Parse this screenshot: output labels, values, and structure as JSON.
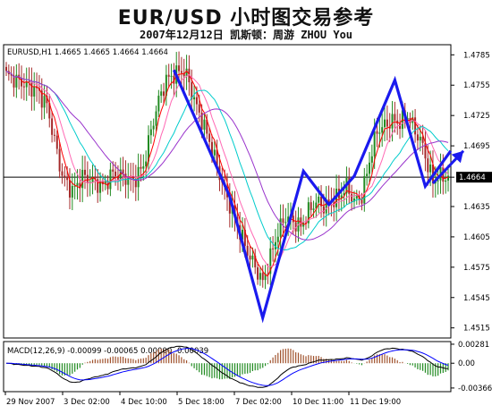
{
  "header": {
    "title": "EUR/USD 小时图交易参考",
    "subtitle": "2007年12月12日  凯斯顿：周游 ZHOU You"
  },
  "chart_data": [
    {
      "type": "candlestick",
      "info_label": "EURUSD,H1  1.4665 1.4665 1.4664 1.4664",
      "ylim": [
        1.4505,
        1.4795
      ],
      "y_ticks": [
        "1.4785",
        "1.4755",
        "1.4725",
        "1.4695",
        "1.4664",
        "1.4635",
        "1.4605",
        "1.4575",
        "1.4545",
        "1.4515"
      ],
      "current_price": 1.4664,
      "current_price_label": "1.4664",
      "x_labels": [
        "29 Nov 2007",
        "3 Dec 02:00",
        "4 Dec 10:00",
        "5 Dec 18:00",
        "7 Dec 02:00",
        "10 Dec 11:00",
        "11 Dec 19:00"
      ],
      "price_path": [
        [
          0,
          1.4765
        ],
        [
          4,
          1.476
        ],
        [
          8,
          1.4755
        ],
        [
          12,
          1.475
        ],
        [
          16,
          1.4735
        ],
        [
          19,
          1.47
        ],
        [
          22,
          1.4665
        ],
        [
          26,
          1.465
        ],
        [
          30,
          1.4665
        ],
        [
          34,
          1.466
        ],
        [
          38,
          1.4655
        ],
        [
          42,
          1.4668
        ],
        [
          46,
          1.4665
        ],
        [
          50,
          1.466
        ],
        [
          54,
          1.4675
        ],
        [
          57,
          1.471
        ],
        [
          60,
          1.474
        ],
        [
          63,
          1.476
        ],
        [
          66,
          1.4765
        ],
        [
          69,
          1.477
        ],
        [
          71,
          1.4765
        ],
        [
          74,
          1.474
        ],
        [
          77,
          1.472
        ],
        [
          80,
          1.47
        ],
        [
          83,
          1.4675
        ],
        [
          86,
          1.465
        ],
        [
          89,
          1.463
        ],
        [
          92,
          1.461
        ],
        [
          95,
          1.459
        ],
        [
          98,
          1.4575
        ],
        [
          101,
          1.456
        ],
        [
          104,
          1.4585
        ],
        [
          107,
          1.461
        ],
        [
          110,
          1.4625
        ],
        [
          113,
          1.462
        ],
        [
          116,
          1.4615
        ],
        [
          119,
          1.463
        ],
        [
          122,
          1.464
        ],
        [
          125,
          1.4635
        ],
        [
          128,
          1.464
        ],
        [
          131,
          1.4645
        ],
        [
          134,
          1.4655
        ],
        [
          137,
          1.464
        ],
        [
          140,
          1.4645
        ],
        [
          143,
          1.468
        ],
        [
          146,
          1.471
        ],
        [
          149,
          1.4715
        ],
        [
          152,
          1.472
        ],
        [
          155,
          1.4718
        ],
        [
          158,
          1.4725
        ],
        [
          161,
          1.471
        ],
        [
          164,
          1.4695
        ],
        [
          166,
          1.4675
        ],
        [
          168,
          1.466
        ],
        [
          170,
          1.4665
        ],
        [
          172,
          1.4664
        ]
      ],
      "moving_averages": [
        {
          "color": "#ff0000",
          "window": 5
        },
        {
          "color": "#ff69b4",
          "window": 10
        },
        {
          "color": "#00cccc",
          "window": 20
        },
        {
          "color": "#9933cc",
          "window": 30
        }
      ],
      "annotation": {
        "color": "#1a1aee",
        "path": [
          [
            66,
            1.477
          ],
          [
            88,
            1.4645
          ],
          [
            101,
            1.4525
          ],
          [
            117,
            1.467
          ],
          [
            127,
            1.4637
          ],
          [
            137,
            1.4665
          ],
          [
            153,
            1.476
          ],
          [
            165,
            1.4655
          ],
          [
            175,
            1.469
          ]
        ],
        "arrow": [
          [
            168,
            1.4658
          ],
          [
            180,
            1.469
          ]
        ]
      }
    },
    {
      "type": "macd",
      "label": "MACD(12,26,9) -0.00099 -0.00065 0.00000 -0.00039",
      "ylim": [
        -0.0042,
        0.0032
      ],
      "y_ticks": [
        "0.00281",
        "0.00",
        "-0.00366"
      ],
      "zero": 0.0,
      "colors": {
        "positive": "#a0522d",
        "negative": "#228b22",
        "signal": "#0000ff",
        "macd": "#000000"
      }
    }
  ]
}
